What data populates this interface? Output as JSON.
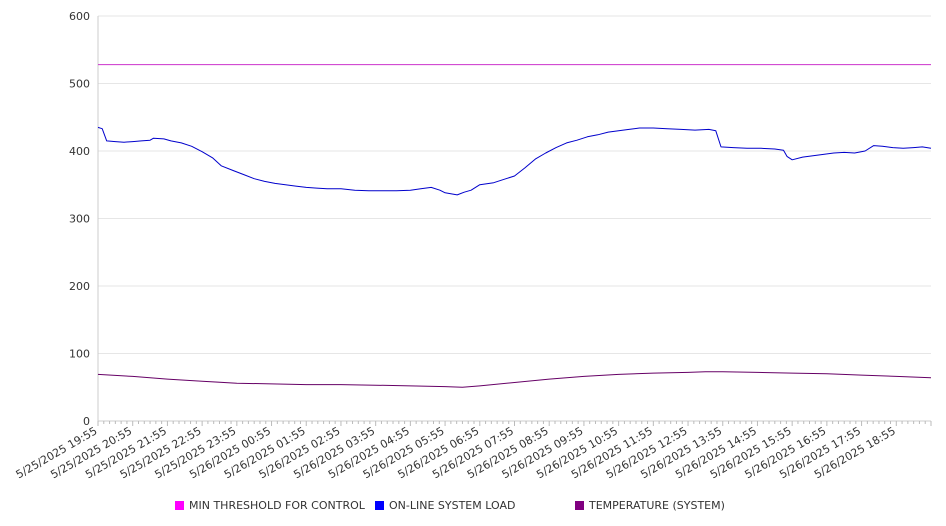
{
  "chart_data": {
    "type": "line",
    "title": "",
    "xlabel": "",
    "ylabel": "",
    "ylim": [
      0,
      600
    ],
    "y_ticks": [
      0,
      100,
      200,
      300,
      400,
      500,
      600
    ],
    "grid": true,
    "legend_position": "bottom",
    "x_tick_labels": [
      "5/25/2025 19:55",
      "5/25/2025 20:55",
      "5/25/2025 21:55",
      "5/25/2025 22:55",
      "5/25/2025 23:55",
      "5/26/2025 00:55",
      "5/26/2025 01:55",
      "5/26/2025 02:55",
      "5/26/2025 03:55",
      "5/26/2025 04:55",
      "5/26/2025 05:55",
      "5/26/2025 06:55",
      "5/26/2025 07:55",
      "5/26/2025 08:55",
      "5/26/2025 09:55",
      "5/26/2025 10:55",
      "5/26/2025 11:55",
      "5/26/2025 12:55",
      "5/26/2025 13:55",
      "5/26/2025 14:55",
      "5/26/2025 15:55",
      "5/26/2025 16:55",
      "5/26/2025 17:55",
      "5/26/2025 18:55"
    ],
    "x_range_hours": [
      0,
      24
    ],
    "series": [
      {
        "name": "MIN THRESHOLD FOR CONTROL",
        "color": "#CC33CC",
        "legend_color": "#FF00FF",
        "points": [
          [
            0,
            528
          ],
          [
            24,
            528
          ]
        ]
      },
      {
        "name": "ON-LINE SYSTEM LOAD",
        "color": "#0000CC",
        "legend_color": "#0000FF",
        "points": [
          [
            0,
            435
          ],
          [
            0.12,
            433
          ],
          [
            0.25,
            415
          ],
          [
            0.5,
            414
          ],
          [
            0.75,
            413
          ],
          [
            1.0,
            414
          ],
          [
            1.25,
            415
          ],
          [
            1.5,
            416
          ],
          [
            1.6,
            419
          ],
          [
            1.9,
            418
          ],
          [
            2.1,
            415
          ],
          [
            2.4,
            412
          ],
          [
            2.7,
            407
          ],
          [
            3.0,
            399
          ],
          [
            3.3,
            390
          ],
          [
            3.55,
            378
          ],
          [
            3.9,
            371
          ],
          [
            4.2,
            365
          ],
          [
            4.5,
            359
          ],
          [
            4.8,
            355
          ],
          [
            5.1,
            352
          ],
          [
            5.4,
            350
          ],
          [
            5.7,
            348
          ],
          [
            6.0,
            346
          ],
          [
            6.3,
            345
          ],
          [
            6.6,
            344
          ],
          [
            7.0,
            344
          ],
          [
            7.4,
            342
          ],
          [
            7.8,
            341
          ],
          [
            8.2,
            341
          ],
          [
            8.6,
            341
          ],
          [
            9.0,
            342
          ],
          [
            9.3,
            344
          ],
          [
            9.6,
            346
          ],
          [
            9.85,
            342
          ],
          [
            10.0,
            338
          ],
          [
            10.35,
            335
          ],
          [
            10.55,
            339
          ],
          [
            10.75,
            342
          ],
          [
            11.0,
            350
          ],
          [
            11.4,
            353
          ],
          [
            11.7,
            358
          ],
          [
            12.0,
            363
          ],
          [
            12.3,
            375
          ],
          [
            12.6,
            388
          ],
          [
            12.9,
            397
          ],
          [
            13.2,
            405
          ],
          [
            13.5,
            412
          ],
          [
            13.8,
            416
          ],
          [
            14.1,
            421
          ],
          [
            14.4,
            424
          ],
          [
            14.7,
            428
          ],
          [
            15.0,
            430
          ],
          [
            15.3,
            432
          ],
          [
            15.6,
            434
          ],
          [
            16.0,
            434
          ],
          [
            16.4,
            433
          ],
          [
            16.8,
            432
          ],
          [
            17.2,
            431
          ],
          [
            17.6,
            432
          ],
          [
            17.8,
            430
          ],
          [
            17.95,
            406
          ],
          [
            18.3,
            405
          ],
          [
            18.7,
            404
          ],
          [
            19.1,
            404
          ],
          [
            19.5,
            403
          ],
          [
            19.75,
            401
          ],
          [
            19.85,
            392
          ],
          [
            20.0,
            387
          ],
          [
            20.3,
            391
          ],
          [
            20.6,
            393
          ],
          [
            20.9,
            395
          ],
          [
            21.2,
            397
          ],
          [
            21.5,
            398
          ],
          [
            21.8,
            397
          ],
          [
            22.1,
            400
          ],
          [
            22.35,
            408
          ],
          [
            22.6,
            407
          ],
          [
            22.9,
            405
          ],
          [
            23.2,
            404
          ],
          [
            23.5,
            405
          ],
          [
            23.75,
            406
          ],
          [
            24.0,
            404
          ]
        ]
      },
      {
        "name": "TEMPERATURE (SYSTEM)",
        "color": "#660066",
        "legend_color": "#800080",
        "points": [
          [
            0,
            69
          ],
          [
            1,
            66
          ],
          [
            2,
            62
          ],
          [
            3,
            59
          ],
          [
            4,
            56
          ],
          [
            5,
            55
          ],
          [
            6,
            54
          ],
          [
            7,
            54
          ],
          [
            8,
            53
          ],
          [
            9,
            52
          ],
          [
            10,
            51
          ],
          [
            10.5,
            50
          ],
          [
            11,
            52
          ],
          [
            12,
            57
          ],
          [
            13,
            62
          ],
          [
            14,
            66
          ],
          [
            15,
            69
          ],
          [
            16,
            71
          ],
          [
            17,
            72
          ],
          [
            17.5,
            73
          ],
          [
            18,
            73
          ],
          [
            19,
            72
          ],
          [
            20,
            71
          ],
          [
            21,
            70
          ],
          [
            22,
            68
          ],
          [
            23,
            66
          ],
          [
            24,
            64
          ]
        ]
      }
    ]
  }
}
